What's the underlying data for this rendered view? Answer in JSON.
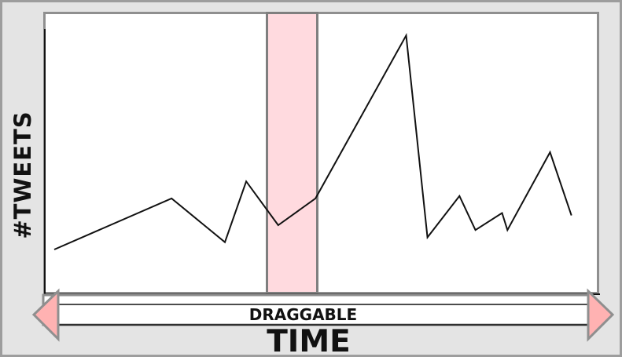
{
  "chart_data": {
    "type": "line",
    "xlabel": "TIME",
    "ylabel": "#TWEETS",
    "x": [
      0,
      0.22,
      0.32,
      0.36,
      0.42,
      0.49,
      0.66,
      0.7,
      0.76,
      0.79,
      0.84,
      0.85,
      0.93,
      0.97
    ],
    "y": [
      0.1,
      0.31,
      0.13,
      0.38,
      0.2,
      0.31,
      0.98,
      0.15,
      0.32,
      0.18,
      0.25,
      0.18,
      0.5,
      0.24
    ],
    "xlim": [
      0,
      1
    ],
    "ylim": [
      0,
      1
    ],
    "grid": false,
    "legend": "none",
    "highlight_window": {
      "x_start": 0.405,
      "x_end": 0.5
    },
    "control": {
      "label": "DRAGGABLE",
      "type": "time-range-slider"
    },
    "colors": {
      "line": "#111111",
      "highlight": "#ffd5dc",
      "arrow": "#ffb2b2",
      "border": "#8f8f8f"
    }
  }
}
